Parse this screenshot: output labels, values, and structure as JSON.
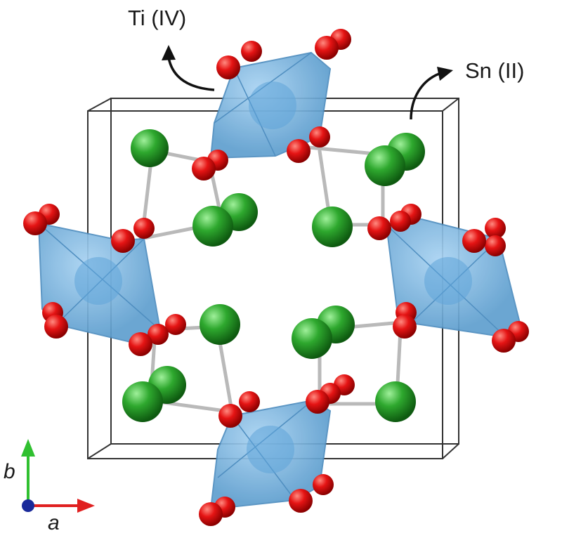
{
  "labels": {
    "ti": "Ti (IV)",
    "sn": "Sn (II)"
  },
  "axes": {
    "b": "b",
    "a": "a"
  },
  "colors": {
    "oxygen": "#e01010",
    "tin": "#2aa02a",
    "titanium_polyhedron": "#6aaee0",
    "cell": "#333333",
    "axis_a": "#e02020",
    "axis_b": "#30c030",
    "axis_c": "#1a2a9a"
  }
}
